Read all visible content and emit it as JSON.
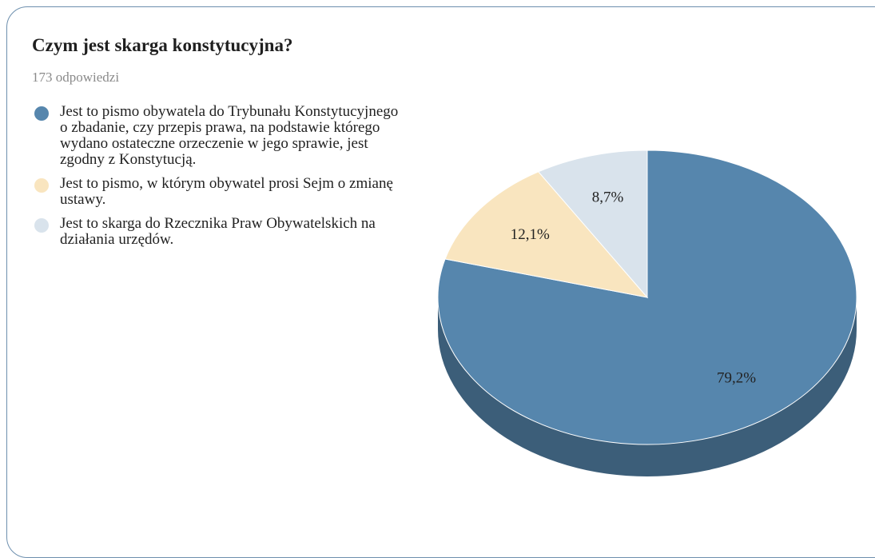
{
  "chart_data": {
    "type": "pie",
    "title": "Czym jest skarga konstytucyjna?",
    "subtitle": "173 odpowiedzi",
    "categories": [
      "Jest to pismo obywatela do Trybunału Konstytucyjnego o zbadanie, czy przepis prawa, na podstawie którego wydano ostateczne orzeczenie w jego sprawie, jest zgodny z Konstytucją.",
      "Jest to pismo, w którym obywatel prosi Sejm o zmianę ustawy.",
      "Jest to skarga do Rzecznika Praw Obywatelskich na działania urzędów."
    ],
    "values": [
      79.2,
      12.1,
      8.7
    ],
    "value_labels": [
      "79,2%",
      "12,1%",
      "8,7%"
    ],
    "colors": [
      "#5686ad",
      "#f9e5bf",
      "#d9e3ec"
    ],
    "legend": "left"
  }
}
